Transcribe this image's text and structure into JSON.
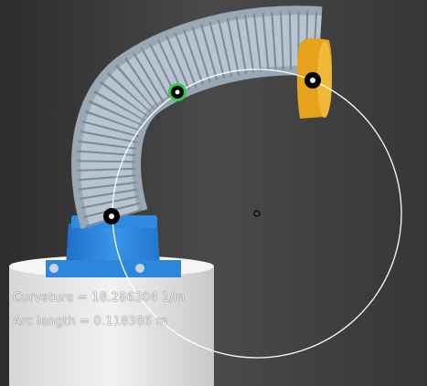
{
  "measurement": {
    "curvature_label": "Curvature = ",
    "curvature_value": "18.286304",
    "curvature_unit": " 1/m",
    "arc_label": "Arc length = ",
    "arc_value": "0.118386",
    "arc_unit": " m"
  },
  "colors": {
    "background": "#3a3a3a",
    "base_blue": "#2f8be0",
    "cap_orange": "#e6a21a",
    "marker": "#000000",
    "marker_highlight": "#2ecc40",
    "fit_circle": "#ffffff"
  },
  "icons": {
    "base_marker": "marker-icon",
    "mid_marker": "marker-highlight-icon",
    "tip_marker": "marker-icon",
    "circle_center": "circle-center-icon"
  }
}
